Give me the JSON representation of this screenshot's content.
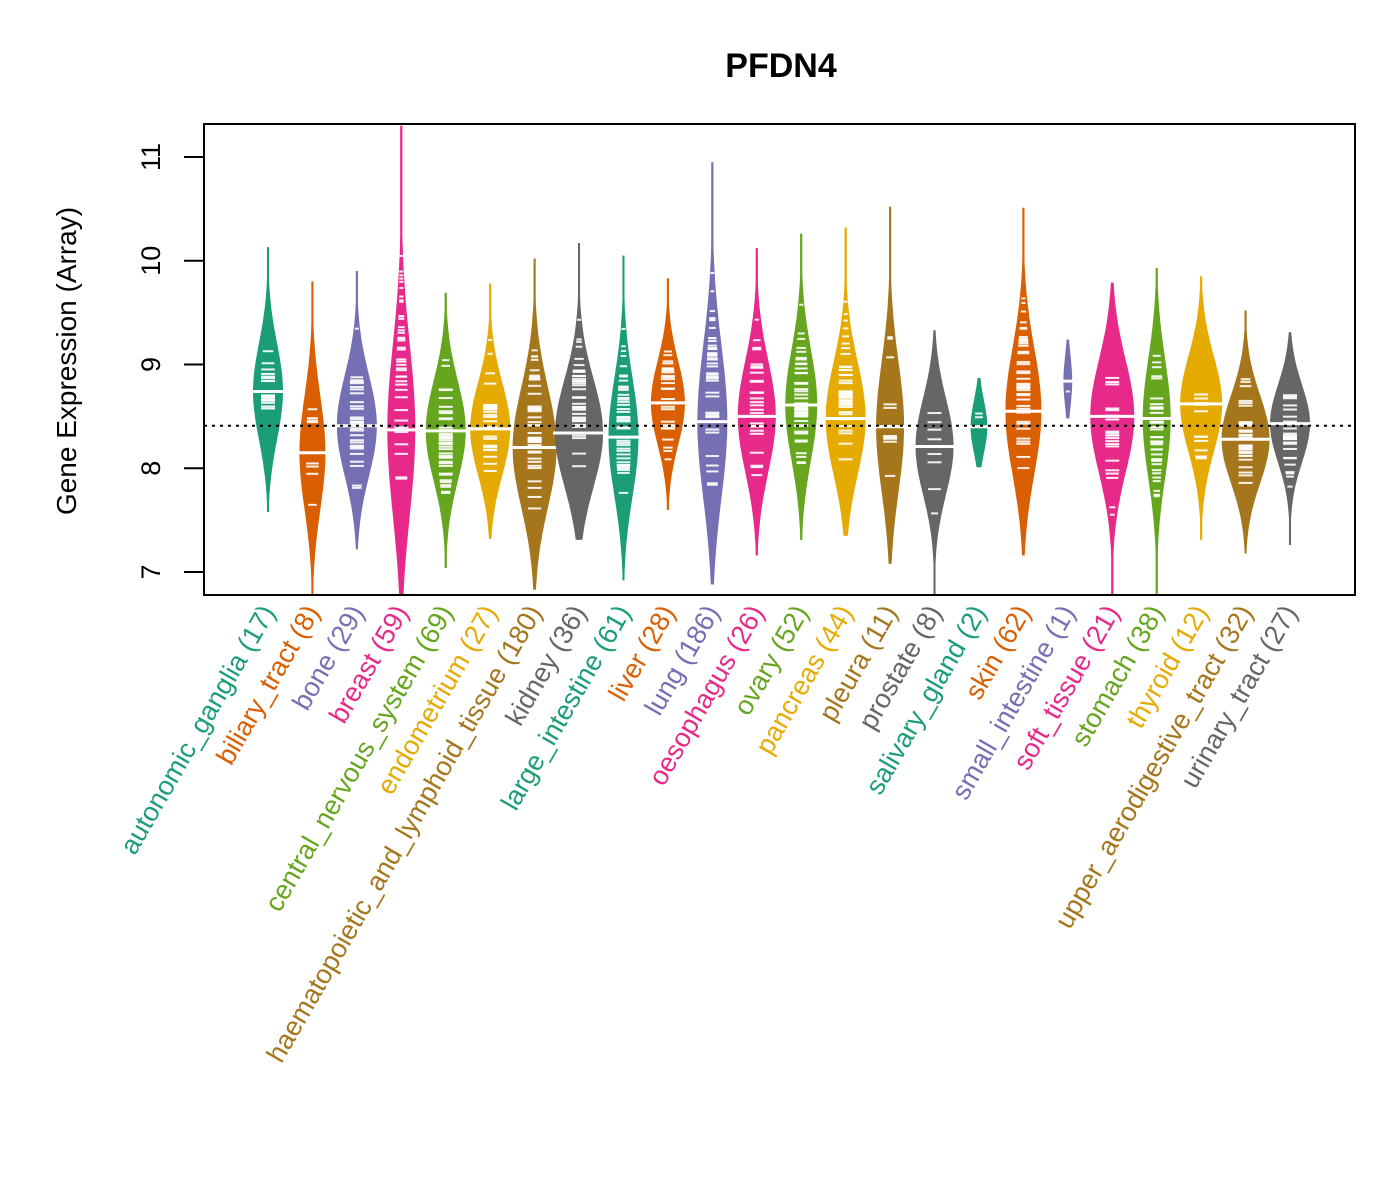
{
  "chart_data": {
    "type": "beanplot",
    "title": "PFDN4",
    "xlabel": "",
    "ylabel": "Gene Expression (Array)",
    "ylim": [
      6.78,
      11.32
    ],
    "yticks": [
      7,
      8,
      9,
      10,
      11
    ],
    "ytick_labels": [
      "7",
      "8",
      "9",
      "10",
      "11"
    ],
    "reference_line": 8.41,
    "grid": false,
    "legend": "none",
    "categories": [
      {
        "name": "autonomic_ganglia",
        "n": 17,
        "label": "autonomic_ganglia (17)",
        "color": "#1B9E77",
        "median": 8.74,
        "min": 7.58,
        "max": 10.13,
        "width": 0.75
      },
      {
        "name": "biliary_tract",
        "n": 8,
        "label": "biliary_tract (8)",
        "color": "#D95F02",
        "median": 8.15,
        "min": 6.78,
        "max": 9.8,
        "width": 0.65
      },
      {
        "name": "bone",
        "n": 29,
        "label": "bone (29)",
        "color": "#7570B3",
        "median": 8.41,
        "min": 7.22,
        "max": 9.9,
        "width": 1.0
      },
      {
        "name": "breast",
        "n": 59,
        "label": "breast (59)",
        "color": "#E7298A",
        "median": 8.37,
        "min": 6.78,
        "max": 11.3,
        "width": 0.7
      },
      {
        "name": "central_nervous_system",
        "n": 69,
        "label": "central_nervous_system (69)",
        "color": "#66A61E",
        "median": 8.36,
        "min": 7.04,
        "max": 9.69,
        "width": 1.0
      },
      {
        "name": "endometrium",
        "n": 27,
        "label": "endometrium (27)",
        "color": "#E6AB02",
        "median": 8.38,
        "min": 7.32,
        "max": 9.78,
        "width": 1.0
      },
      {
        "name": "haematopoietic_and_lymphoid_tissue",
        "n": 180,
        "label": "haematopoietic_and_lymphoid_tissue (180)",
        "color": "#A6761D",
        "median": 8.2,
        "min": 6.83,
        "max": 10.02,
        "width": 1.1
      },
      {
        "name": "kidney",
        "n": 36,
        "label": "kidney (36)",
        "color": "#666666",
        "median": 8.34,
        "min": 7.31,
        "max": 10.17,
        "width": 1.2
      },
      {
        "name": "large_intestine",
        "n": 61,
        "label": "large_intestine (61)",
        "color": "#1B9E77",
        "median": 8.3,
        "min": 6.92,
        "max": 10.05,
        "width": 0.75
      },
      {
        "name": "liver",
        "n": 28,
        "label": "liver (28)",
        "color": "#D95F02",
        "median": 8.63,
        "min": 7.6,
        "max": 9.83,
        "width": 0.85
      },
      {
        "name": "lung",
        "n": 186,
        "label": "lung (186)",
        "color": "#7570B3",
        "median": 8.45,
        "min": 6.88,
        "max": 10.95,
        "width": 0.75
      },
      {
        "name": "oesophagus",
        "n": 26,
        "label": "oesophagus (26)",
        "color": "#E7298A",
        "median": 8.5,
        "min": 7.16,
        "max": 10.12,
        "width": 0.95
      },
      {
        "name": "ovary",
        "n": 52,
        "label": "ovary (52)",
        "color": "#66A61E",
        "median": 8.61,
        "min": 7.31,
        "max": 10.26,
        "width": 0.8
      },
      {
        "name": "pancreas",
        "n": 44,
        "label": "pancreas (44)",
        "color": "#E6AB02",
        "median": 8.48,
        "min": 7.35,
        "max": 10.32,
        "width": 1.0
      },
      {
        "name": "pleura",
        "n": 11,
        "label": "pleura (11)",
        "color": "#A6761D",
        "median": 8.4,
        "min": 7.08,
        "max": 10.52,
        "width": 0.7
      },
      {
        "name": "prostate",
        "n": 8,
        "label": "prostate (8)",
        "color": "#666666",
        "median": 8.21,
        "min": 6.78,
        "max": 9.33,
        "width": 0.95
      },
      {
        "name": "salivary_gland",
        "n": 2,
        "label": "salivary_gland (2)",
        "color": "#1B9E77",
        "median": 8.4,
        "min": 8.01,
        "max": 8.87,
        "width": 0.42
      },
      {
        "name": "skin",
        "n": 62,
        "label": "skin (62)",
        "color": "#D95F02",
        "median": 8.55,
        "min": 7.16,
        "max": 10.51,
        "width": 0.9
      },
      {
        "name": "small_intestine",
        "n": 1,
        "label": "small_intestine (1)",
        "color": "#7570B3",
        "median": 8.84,
        "min": 8.48,
        "max": 9.24,
        "width": 0.22
      },
      {
        "name": "soft_tissue",
        "n": 21,
        "label": "soft_tissue (21)",
        "color": "#E7298A",
        "median": 8.5,
        "min": 6.78,
        "max": 9.79,
        "width": 1.1
      },
      {
        "name": "stomach",
        "n": 38,
        "label": "stomach (38)",
        "color": "#66A61E",
        "median": 8.48,
        "min": 6.79,
        "max": 9.93,
        "width": 0.7
      },
      {
        "name": "thyroid",
        "n": 12,
        "label": "thyroid (12)",
        "color": "#E6AB02",
        "median": 8.62,
        "min": 7.31,
        "max": 9.85,
        "width": 1.05
      },
      {
        "name": "upper_aerodigestive_tract",
        "n": 32,
        "label": "upper_aerodigestive_tract (32)",
        "color": "#A6761D",
        "median": 8.28,
        "min": 7.18,
        "max": 9.52,
        "width": 1.2
      },
      {
        "name": "urinary_tract",
        "n": 27,
        "label": "urinary_tract (27)",
        "color": "#666666",
        "median": 8.43,
        "min": 7.26,
        "max": 9.31,
        "width": 1.0
      }
    ]
  }
}
